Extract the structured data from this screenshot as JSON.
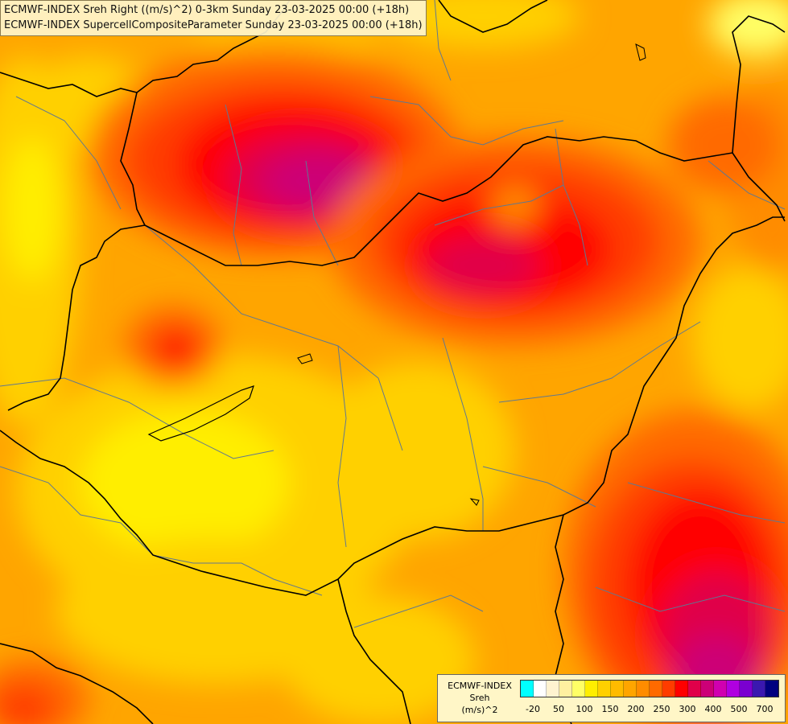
{
  "header": {
    "line1": "ECMWF-INDEX Sreh Right ((m/s)^2) 0-3km Sunday 23-03-2025 00:00 (+18h)",
    "line2": "ECMWF-INDEX SupercellCompositeParameter Sunday 23-03-2025 00:00 (+18h)"
  },
  "legend": {
    "line1": "ECMWF-INDEX",
    "line2": "Sreh",
    "line3": "(m/s)^2",
    "colors": [
      "#00ffff",
      "#ffffff",
      "#fff3d0",
      "#fff0a0",
      "#ffff66",
      "#ffee00",
      "#ffd000",
      "#ffbb00",
      "#ffa500",
      "#ff8c00",
      "#ff6a00",
      "#ff3c00",
      "#ff0000",
      "#e0004a",
      "#cc0077",
      "#d000b0",
      "#b000e0",
      "#7a00d0",
      "#3a18b0",
      "#000080"
    ],
    "ticks": [
      "-20",
      "50",
      "100",
      "150",
      "200",
      "250",
      "300",
      "400",
      "500",
      "700"
    ]
  }
}
